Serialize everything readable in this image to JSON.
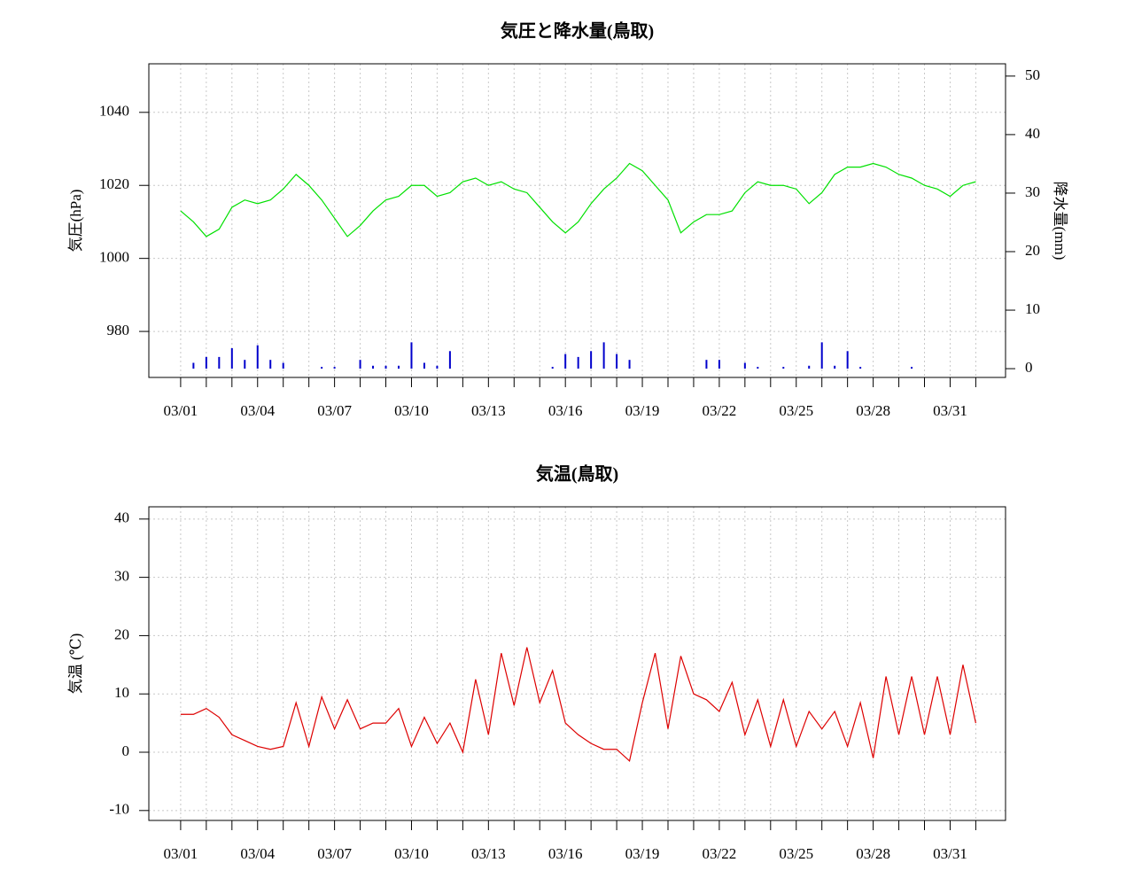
{
  "chart_data": [
    {
      "type": "line-bar",
      "title": "気圧と降水量(鳥取)",
      "ylabel": "気圧(hPa)",
      "y2label": "降水量(mm)",
      "x": [
        0,
        0.5,
        1,
        1.5,
        2,
        2.5,
        3,
        3.5,
        4,
        4.5,
        5,
        5.5,
        6,
        6.5,
        7,
        7.5,
        8,
        8.5,
        9,
        9.5,
        10,
        10.5,
        11,
        11.5,
        12,
        12.5,
        13,
        13.5,
        14,
        14.5,
        15,
        15.5,
        16,
        16.5,
        17,
        17.5,
        18,
        18.5,
        19,
        19.5,
        20,
        20.5,
        21,
        21.5,
        22,
        22.5,
        23,
        23.5,
        24,
        24.5,
        25,
        25.5,
        26,
        26.5,
        27,
        27.5,
        28,
        28.5,
        29,
        29.5,
        30,
        30.5,
        31
      ],
      "series": [
        {
          "kind": "line",
          "color": "#00e000",
          "values": [
            1013,
            1010,
            1006,
            1008,
            1014,
            1016,
            1015,
            1016,
            1019,
            1023,
            1020,
            1016,
            1011,
            1006,
            1009,
            1013,
            1016,
            1017,
            1020,
            1020,
            1017,
            1018,
            1021,
            1022,
            1020,
            1021,
            1019,
            1018,
            1014,
            1010,
            1007,
            1010,
            1015,
            1019,
            1022,
            1026,
            1024,
            1020,
            1016,
            1007,
            1010,
            1012,
            1012,
            1013,
            1018,
            1021,
            1020,
            1020,
            1019,
            1015,
            1018,
            1023,
            1025,
            1025,
            1026,
            1025,
            1023,
            1022,
            1020,
            1019,
            1017,
            1020,
            1021
          ]
        },
        {
          "kind": "bar",
          "axis": "y2",
          "color": "#0000cc",
          "values": [
            0,
            1,
            2,
            2,
            3.5,
            1.5,
            4,
            1.5,
            1,
            0,
            0,
            0.3,
            0.3,
            0,
            1.5,
            0.5,
            0.5,
            0.5,
            4.5,
            1,
            0.5,
            3,
            0,
            0,
            0,
            0,
            0,
            0,
            0,
            0.3,
            2.5,
            2,
            3,
            4.5,
            2.5,
            1.5,
            0,
            0,
            0,
            0,
            0,
            1.5,
            1.5,
            0,
            1,
            0.3,
            0,
            0.3,
            0,
            0.5,
            4.5,
            0.5,
            3,
            0.3,
            0,
            0,
            0,
            0.3,
            0,
            0,
            0,
            0,
            0
          ]
        }
      ],
      "xlim": [
        -1.24,
        32.16
      ],
      "xticks": [
        {
          "value": 0,
          "label": "03/01"
        },
        {
          "value": 3,
          "label": "03/04"
        },
        {
          "value": 6,
          "label": "03/07"
        },
        {
          "value": 9,
          "label": "03/10"
        },
        {
          "value": 12,
          "label": "03/13"
        },
        {
          "value": 15,
          "label": "03/16"
        },
        {
          "value": 18,
          "label": "03/19"
        },
        {
          "value": 21,
          "label": "03/22"
        },
        {
          "value": 24,
          "label": "03/25"
        },
        {
          "value": 27,
          "label": "03/28"
        },
        {
          "value": 30,
          "label": "03/31"
        }
      ],
      "x_minor_ticks": [
        0,
        1,
        2,
        3,
        4,
        5,
        6,
        7,
        8,
        9,
        10,
        11,
        12,
        13,
        14,
        15,
        16,
        17,
        18,
        19,
        20,
        21,
        22,
        23,
        24,
        25,
        26,
        27,
        28,
        29,
        30,
        31
      ],
      "ylim": [
        967.4,
        1053.3
      ],
      "yticks": [
        980,
        1000,
        1020,
        1040
      ],
      "y2lim": [
        -1.5,
        52.1
      ],
      "y2ticks": [
        0,
        10,
        20,
        30,
        40,
        50
      ],
      "grid": true
    },
    {
      "type": "line",
      "title": "気温(鳥取)",
      "ylabel": "気温 (℃)",
      "x": [
        0,
        0.5,
        1,
        1.5,
        2,
        2.5,
        3,
        3.5,
        4,
        4.5,
        5,
        5.5,
        6,
        6.5,
        7,
        7.5,
        8,
        8.5,
        9,
        9.5,
        10,
        10.5,
        11,
        11.5,
        12,
        12.5,
        13,
        13.5,
        14,
        14.5,
        15,
        15.5,
        16,
        16.5,
        17,
        17.5,
        18,
        18.5,
        19,
        19.5,
        20,
        20.5,
        21,
        21.5,
        22,
        22.5,
        23,
        23.5,
        24,
        24.5,
        25,
        25.5,
        26,
        26.5,
        27,
        27.5,
        28,
        28.5,
        29,
        29.5,
        30,
        30.5,
        31
      ],
      "series": [
        {
          "kind": "line",
          "color": "#dd0000",
          "values": [
            6.5,
            6.5,
            7.5,
            6,
            3,
            2,
            1,
            0.5,
            1,
            8.5,
            1,
            9.5,
            4,
            9,
            4,
            5,
            5,
            7.5,
            1,
            6,
            1.5,
            5,
            0,
            12.5,
            3,
            17,
            8,
            18,
            8.5,
            14,
            5,
            3,
            1.5,
            0.5,
            0.5,
            -1.5,
            8.5,
            17,
            4,
            16.5,
            10,
            9,
            7,
            12,
            3,
            9,
            1,
            9,
            1,
            7,
            4,
            7,
            1,
            8.5,
            -1,
            13,
            3,
            13,
            3,
            13,
            3,
            15,
            5
          ]
        }
      ],
      "xlim": [
        -1.24,
        32.16
      ],
      "xticks": [
        {
          "value": 0,
          "label": "03/01"
        },
        {
          "value": 3,
          "label": "03/04"
        },
        {
          "value": 6,
          "label": "03/07"
        },
        {
          "value": 9,
          "label": "03/10"
        },
        {
          "value": 12,
          "label": "03/13"
        },
        {
          "value": 15,
          "label": "03/16"
        },
        {
          "value": 18,
          "label": "03/19"
        },
        {
          "value": 21,
          "label": "03/22"
        },
        {
          "value": 24,
          "label": "03/25"
        },
        {
          "value": 27,
          "label": "03/28"
        },
        {
          "value": 30,
          "label": "03/31"
        }
      ],
      "x_minor_ticks": [
        0,
        1,
        2,
        3,
        4,
        5,
        6,
        7,
        8,
        9,
        10,
        11,
        12,
        13,
        14,
        15,
        16,
        17,
        18,
        19,
        20,
        21,
        22,
        23,
        24,
        25,
        26,
        27,
        28,
        29,
        30,
        31
      ],
      "ylim": [
        -11.7,
        42.1
      ],
      "yticks": [
        -10,
        0,
        10,
        20,
        30,
        40
      ],
      "grid": true
    }
  ]
}
